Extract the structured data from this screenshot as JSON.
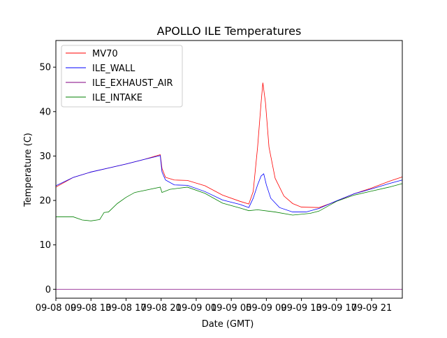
{
  "chart_data": {
    "type": "line",
    "title": "APOLLO ILE Temperatures",
    "xlabel": "Date (GMT)",
    "ylabel": "Temperature (C)",
    "xlim": [
      0,
      39.5
    ],
    "ylim": [
      -2,
      56
    ],
    "grid": false,
    "legend_location": "upper-left",
    "y_ticks": [
      0,
      10,
      20,
      30,
      40,
      50
    ],
    "x_ticks": [
      {
        "value": 0,
        "label": "09-08 09"
      },
      {
        "value": 4,
        "label": "09-08 13"
      },
      {
        "value": 8,
        "label": "09-08 17"
      },
      {
        "value": 12,
        "label": "09-08 21"
      },
      {
        "value": 16,
        "label": "09-09 01"
      },
      {
        "value": 20,
        "label": "09-09 05"
      },
      {
        "value": 24,
        "label": "09-09 09"
      },
      {
        "value": 28,
        "label": "09-09 13"
      },
      {
        "value": 32,
        "label": "09-09 17"
      },
      {
        "value": 36,
        "label": "09-09 21"
      }
    ],
    "series": [
      {
        "name": "MV70",
        "color": "#ff0000",
        "x": [
          0,
          2,
          4,
          6,
          8,
          10,
          11.9,
          12.1,
          12.5,
          13.5,
          15,
          17,
          19,
          21,
          22,
          22.5,
          23,
          23.4,
          23.6,
          23.9,
          24.3,
          25,
          26,
          27,
          28,
          30,
          32,
          34,
          36,
          38,
          39.5
        ],
        "y": [
          23,
          25.2,
          26.4,
          27.3,
          28.2,
          29.2,
          30.3,
          27.2,
          25.2,
          24.6,
          24.5,
          23.3,
          21.2,
          19.8,
          19.2,
          22,
          32,
          42,
          46.5,
          42,
          32,
          25,
          21,
          19.3,
          18.5,
          18.4,
          19.8,
          21.5,
          22.8,
          24.3,
          25.3
        ]
      },
      {
        "name": "ILE_WALL",
        "color": "#0000ff",
        "x": [
          0,
          2,
          4,
          6,
          8,
          10,
          11.9,
          12.1,
          12.5,
          13.5,
          15,
          17,
          19,
          21,
          22,
          22.5,
          23,
          23.4,
          23.7,
          24,
          24.5,
          25.5,
          27,
          28.5,
          30,
          32,
          34,
          36,
          38,
          39.5
        ],
        "y": [
          23.3,
          25.2,
          26.4,
          27.3,
          28.2,
          29.2,
          30.1,
          26.4,
          24.6,
          23.5,
          23.4,
          22,
          20.1,
          19.1,
          18.4,
          20.5,
          23.5,
          25.5,
          26,
          23.5,
          20.5,
          18.4,
          17.4,
          17.4,
          18.2,
          19.9,
          21.5,
          22.6,
          23.8,
          24.6
        ]
      },
      {
        "name": "ILE_EXHAUST_AIR",
        "color": "#800080",
        "x": [
          0,
          39.5
        ],
        "y": [
          0,
          0
        ]
      },
      {
        "name": "ILE_INTAKE",
        "color": "#008000",
        "x": [
          0,
          2,
          3,
          4,
          5,
          5.5,
          6,
          7,
          8,
          9,
          11.9,
          12.1,
          13,
          15,
          17,
          19,
          21,
          22,
          23,
          25,
          27,
          29,
          30,
          32,
          34,
          36,
          38,
          39.5
        ],
        "y": [
          16.3,
          16.3,
          15.6,
          15.4,
          15.7,
          17.3,
          17.4,
          19.3,
          20.7,
          21.8,
          23,
          21.8,
          22.5,
          23,
          21.6,
          19.4,
          18.3,
          17.7,
          17.9,
          17.4,
          16.7,
          17.1,
          17.6,
          19.8,
          21.2,
          22.1,
          23,
          23.8
        ]
      }
    ]
  }
}
